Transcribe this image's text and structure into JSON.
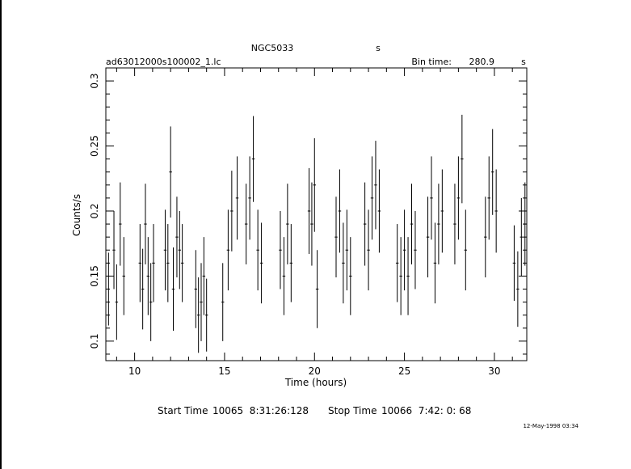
{
  "header": {
    "object": "NGC5033",
    "unit": "s",
    "filename": "ad63012000s100002_1.lc",
    "bin_label": "Bin time:",
    "bin_value": "280.9",
    "bin_unit": "s"
  },
  "footer": {
    "start_label": "Start Time",
    "start_value": "10065  8:31:26:128",
    "stop_label": "Stop Time",
    "stop_value": "10066  7:42: 0: 68",
    "date": "12-May-1998 03:34"
  },
  "chart_data": {
    "type": "scatter",
    "xlabel": "Time (hours)",
    "ylabel": "Counts/s",
    "xlim": [
      8.4,
      31.8
    ],
    "ylim": [
      0.085,
      0.31
    ],
    "xticks": [
      10,
      15,
      20,
      25,
      30
    ],
    "yticks": [
      0.1,
      0.15,
      0.2,
      0.25,
      0.3
    ],
    "xtick_labels": [
      "10",
      "15",
      "20",
      "25",
      "30"
    ],
    "ytick_labels": [
      "0.1",
      "0.15",
      "0.2",
      "0.25",
      "0.3"
    ],
    "series": [
      {
        "x": [
          8.55,
          8.85,
          9.0,
          9.2,
          9.4,
          10.3,
          10.45,
          10.6,
          10.75,
          10.9,
          11.05,
          11.7,
          11.85,
          12.0,
          12.15,
          12.35,
          12.5,
          12.65,
          13.4,
          13.55,
          13.7,
          13.85,
          14.0,
          14.9,
          15.2,
          15.4,
          15.7,
          16.2,
          16.4,
          16.6,
          16.85,
          17.05,
          18.1,
          18.3,
          18.5,
          18.7,
          19.7,
          19.85,
          20.0,
          20.15,
          21.2,
          21.4,
          21.6,
          21.8,
          22.0,
          22.8,
          23.0,
          23.2,
          23.4,
          23.6,
          24.6,
          24.8,
          25.0,
          25.2,
          25.4,
          25.6,
          26.3,
          26.5,
          26.7,
          26.9,
          27.1,
          27.8,
          28.0,
          28.2,
          28.4,
          29.5,
          29.7,
          29.9,
          30.1,
          31.1,
          31.3,
          31.5,
          31.7
        ],
        "y": [
          0.14,
          0.17,
          0.13,
          0.19,
          0.15,
          0.16,
          0.14,
          0.19,
          0.15,
          0.13,
          0.16,
          0.17,
          0.16,
          0.23,
          0.14,
          0.18,
          0.17,
          0.16,
          0.14,
          0.12,
          0.13,
          0.15,
          0.12,
          0.13,
          0.17,
          0.2,
          0.21,
          0.19,
          0.21,
          0.24,
          0.17,
          0.16,
          0.17,
          0.15,
          0.19,
          0.16,
          0.2,
          0.19,
          0.22,
          0.14,
          0.18,
          0.2,
          0.16,
          0.17,
          0.15,
          0.19,
          0.17,
          0.21,
          0.22,
          0.2,
          0.16,
          0.15,
          0.17,
          0.15,
          0.19,
          0.17,
          0.18,
          0.21,
          0.16,
          0.19,
          0.2,
          0.19,
          0.21,
          0.24,
          0.17,
          0.18,
          0.21,
          0.23,
          0.2,
          0.16,
          0.14,
          0.18,
          0.19
        ],
        "err": [
          0.028,
          0.03,
          0.029,
          0.032,
          0.03,
          0.03,
          0.031,
          0.031,
          0.03,
          0.03,
          0.03,
          0.031,
          0.03,
          0.035,
          0.032,
          0.031,
          0.03,
          0.03,
          0.03,
          0.029,
          0.03,
          0.03,
          0.028,
          0.03,
          0.031,
          0.031,
          0.032,
          0.031,
          0.032,
          0.033,
          0.031,
          0.031,
          0.03,
          0.03,
          0.031,
          0.03,
          0.033,
          0.032,
          0.036,
          0.03,
          0.031,
          0.032,
          0.031,
          0.031,
          0.03,
          0.032,
          0.031,
          0.032,
          0.034,
          0.032,
          0.03,
          0.03,
          0.031,
          0.03,
          0.031,
          0.03,
          0.031,
          0.032,
          0.031,
          0.031,
          0.032,
          0.031,
          0.032,
          0.034,
          0.031,
          0.031,
          0.032,
          0.033,
          0.032,
          0.029,
          0.029,
          0.03,
          0.032
        ],
        "xerr": 0.078
      }
    ]
  }
}
